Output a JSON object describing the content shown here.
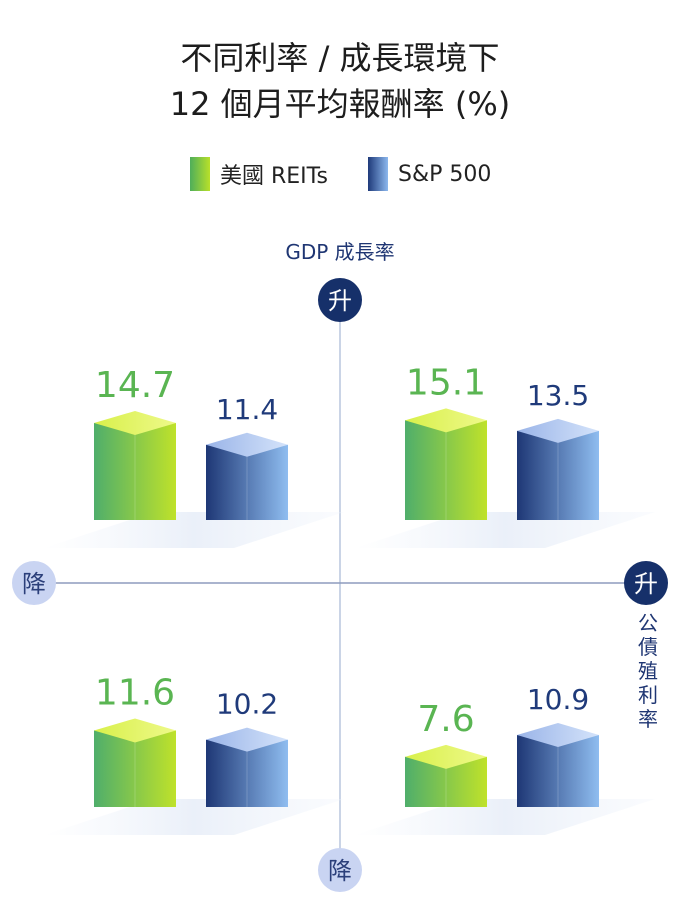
{
  "title": {
    "line1": "不同利率 / 成長環境下",
    "line2": "12 個月平均報酬率 (%)"
  },
  "legend": [
    {
      "label": "美國 REITs",
      "color": "#6cc04a"
    },
    {
      "label": "S&P 500",
      "color": "#2c4a8c"
    }
  ],
  "axes": {
    "y_label": "GDP 成長率",
    "y_top": "升",
    "y_bottom": "降",
    "x_left": "降",
    "x_right": "升",
    "x_label": "公債殖利率"
  },
  "chart_data": {
    "type": "bar",
    "title": "不同利率 / 成長環境下 12 個月平均報酬率 (%)",
    "xlabel": "公債殖利率",
    "ylabel": "GDP 成長率",
    "categories": [
      "GDP 升 / 公債殖利率 降",
      "GDP 升 / 公債殖利率 升",
      "GDP 降 / 公債殖利率 降",
      "GDP 降 / 公債殖利率 升"
    ],
    "series": [
      {
        "name": "美國 REITs",
        "values": [
          14.7,
          15.1,
          11.6,
          7.6
        ],
        "labels": [
          "14.7",
          "15.1",
          "11.6",
          "7.6"
        ],
        "color": "#5ab552"
      },
      {
        "name": "S&P 500",
        "values": [
          11.4,
          13.5,
          10.2,
          10.9
        ],
        "labels": [
          "11.4",
          "13.5",
          "10.2",
          "10.9"
        ],
        "color": "#1f3a7a"
      }
    ]
  }
}
